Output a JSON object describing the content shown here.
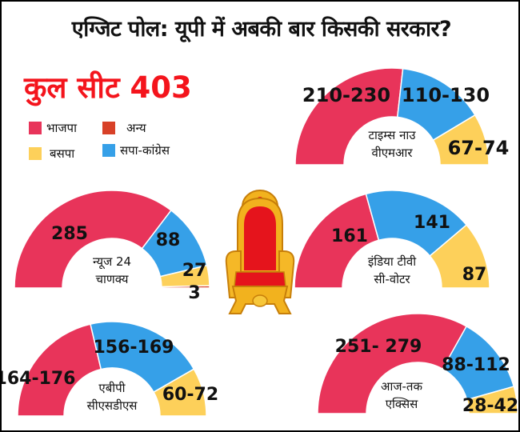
{
  "title": "एग्जिट पोल: यूपी में अबकी बार किसकी सरकार?",
  "total_seats_label": "कुल सीट 403",
  "colors": {
    "bjp": "#e8345a",
    "sp_congress": "#36a0e8",
    "bsp": "#fdd05a",
    "others": "#d84128",
    "title_red": "#f4141c"
  },
  "legend": [
    {
      "key": "bjp",
      "label": "भाजपा",
      "color": "#e8345a"
    },
    {
      "key": "others",
      "label": "अन्य",
      "color": "#d84128"
    },
    {
      "key": "bsp",
      "label": "बसपा",
      "color": "#fdd05a"
    },
    {
      "key": "sp_congress",
      "label": "सपा-कांग्रेस",
      "color": "#36a0e8"
    }
  ],
  "chart_data": [
    {
      "type": "pie",
      "subtype": "half-donut",
      "title": "टाइम्स नाउ वीएमआर",
      "source_lines": [
        "टाइम्स नाउ",
        "वीएमआर"
      ],
      "categories": [
        "भाजपा",
        "सपा-कांग्रेस",
        "बसपा"
      ],
      "labels": [
        "210-230",
        "110-130",
        "67-74"
      ],
      "values": [
        220,
        120,
        70.5
      ]
    },
    {
      "type": "pie",
      "subtype": "half-donut",
      "title": "न्यूज 24 चाणक्य",
      "source_lines": [
        "न्यूज 24",
        "चाणक्य"
      ],
      "categories": [
        "भाजपा",
        "सपा-कांग्रेस",
        "बसपा",
        "अन्य"
      ],
      "labels": [
        "285",
        "88",
        "27",
        "3"
      ],
      "values": [
        285,
        88,
        27,
        3
      ]
    },
    {
      "type": "pie",
      "subtype": "half-donut",
      "title": "इंडिया टीवी सी-वोटर",
      "source_lines": [
        "इंडिया टीवी",
        "सी-वोटर"
      ],
      "categories": [
        "भाजपा",
        "सपा-कांग्रेस",
        "बसपा"
      ],
      "labels": [
        "161",
        "141",
        "87"
      ],
      "values": [
        161,
        141,
        87
      ]
    },
    {
      "type": "pie",
      "subtype": "half-donut",
      "title": "एबीपी सीएसडीएस",
      "source_lines": [
        "एबीपी",
        "सीएसडीएस"
      ],
      "categories": [
        "भाजपा",
        "सपा-कांग्रेस",
        "बसपा"
      ],
      "labels": [
        "164-176",
        "156-169",
        "60-72"
      ],
      "values": [
        170,
        162.5,
        66
      ]
    },
    {
      "type": "pie",
      "subtype": "half-donut",
      "title": "आज-तक एक्सिस",
      "source_lines": [
        "आज-तक",
        "एक्सिस"
      ],
      "categories": [
        "भाजपा",
        "सपा-कांग्रेस",
        "बसपा"
      ],
      "labels": [
        "251- 279",
        "88-112",
        "28-42"
      ],
      "values": [
        265,
        100,
        35
      ]
    }
  ],
  "decoration": {
    "icon": "throne-icon"
  }
}
